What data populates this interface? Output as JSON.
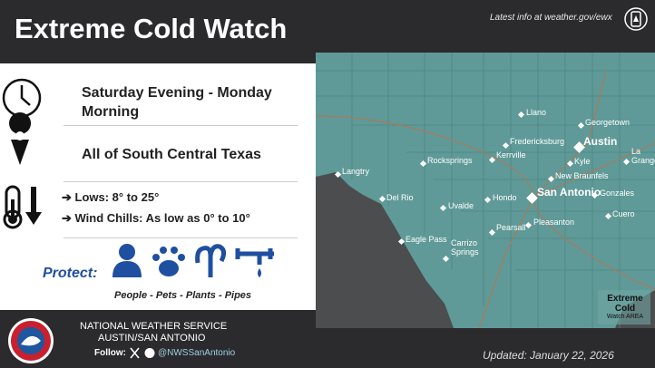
{
  "header": {
    "title": "Extreme Cold Watch",
    "info_link": "Latest info at weather.gov/ewx"
  },
  "panel": {
    "timeframe": "Saturday Evening - Monday Morning",
    "area": "All of South Central Texas",
    "lows": "Lows: 8° to 25°",
    "wind_chills": "Wind Chills: As low as 0° to 10°",
    "protect_label": "Protect:",
    "protect_items": [
      "People",
      "Pets",
      "Plants",
      "Pipes"
    ]
  },
  "map": {
    "cities": [
      "Llano",
      "Georgetown",
      "Austin",
      "Fredericksburg",
      "Kerrville",
      "Rocksprings",
      "Kyle",
      "La Grange",
      "New Braunfels",
      "Langtry",
      "Del Rio",
      "Hondo",
      "San Antonio",
      "Gonzales",
      "Uvalde",
      "Pleasanton",
      "Pearsall",
      "Cuero",
      "Eagle Pass",
      "Carrizo Springs"
    ],
    "legend": {
      "line1": "Extreme Cold",
      "line2": "Watch AREA"
    }
  },
  "footer": {
    "office_line1": "NATIONAL WEATHER SERVICE",
    "office_line2": "AUSTIN/SAN ANTONIO",
    "follow_label": "Follow:",
    "handle": "@NWSSanAntonio",
    "updated": "Updated: January 22, 2026"
  }
}
